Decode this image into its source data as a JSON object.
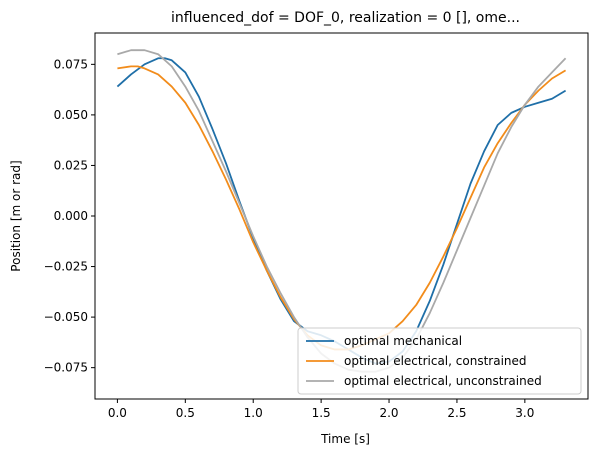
{
  "chart_data": {
    "type": "line",
    "title": "influenced_dof = DOF_0, realization = 0 [], ome...",
    "xlabel": "Time [s]",
    "ylabel": "Position [m or rad]",
    "xlim": [
      -0.165,
      3.465
    ],
    "ylim": [
      -0.0905,
      0.0905
    ],
    "xticks": [
      0.0,
      0.5,
      1.0,
      1.5,
      2.0,
      2.5,
      3.0
    ],
    "xtick_labels": [
      "0.0",
      "0.5",
      "1.0",
      "1.5",
      "2.0",
      "2.5",
      "3.0"
    ],
    "yticks": [
      -0.075,
      -0.05,
      -0.025,
      0.0,
      0.025,
      0.05,
      0.075
    ],
    "ytick_labels": [
      "−0.075",
      "−0.050",
      "−0.025",
      "0.000",
      "0.025",
      "0.050",
      "0.075"
    ],
    "grid": false,
    "legend_position": "lower-right",
    "series": [
      {
        "name": "optimal mechanical",
        "color": "#1f6fa8",
        "x": [
          0.0,
          0.1,
          0.2,
          0.3,
          0.35,
          0.4,
          0.5,
          0.6,
          0.7,
          0.8,
          0.9,
          1.0,
          1.1,
          1.2,
          1.3,
          1.4,
          1.5,
          1.6,
          1.7,
          1.8,
          1.9,
          2.0,
          2.1,
          2.2,
          2.3,
          2.4,
          2.5,
          2.6,
          2.7,
          2.8,
          2.9,
          3.0,
          3.1,
          3.2,
          3.3
        ],
        "y": [
          0.064,
          0.07,
          0.075,
          0.078,
          0.078,
          0.077,
          0.071,
          0.059,
          0.043,
          0.026,
          0.007,
          -0.011,
          -0.027,
          -0.041,
          -0.052,
          -0.057,
          -0.059,
          -0.062,
          -0.066,
          -0.07,
          -0.073,
          -0.072,
          -0.067,
          -0.057,
          -0.042,
          -0.024,
          -0.004,
          0.016,
          0.032,
          0.045,
          0.051,
          0.054,
          0.056,
          0.058,
          0.062
        ]
      },
      {
        "name": "optimal electrical, constrained",
        "color": "#f28c1b",
        "x": [
          0.0,
          0.1,
          0.15,
          0.2,
          0.3,
          0.4,
          0.5,
          0.6,
          0.7,
          0.8,
          0.9,
          1.0,
          1.1,
          1.2,
          1.3,
          1.4,
          1.5,
          1.6,
          1.7,
          1.8,
          1.9,
          2.0,
          2.1,
          2.2,
          2.3,
          2.4,
          2.5,
          2.6,
          2.7,
          2.8,
          2.9,
          3.0,
          3.1,
          3.2,
          3.3
        ],
        "y": [
          0.073,
          0.074,
          0.074,
          0.073,
          0.07,
          0.064,
          0.056,
          0.045,
          0.032,
          0.018,
          0.003,
          -0.013,
          -0.027,
          -0.04,
          -0.051,
          -0.059,
          -0.064,
          -0.066,
          -0.066,
          -0.064,
          -0.061,
          -0.058,
          -0.052,
          -0.044,
          -0.033,
          -0.02,
          -0.006,
          0.009,
          0.024,
          0.036,
          0.046,
          0.055,
          0.062,
          0.068,
          0.072
        ]
      },
      {
        "name": "optimal electrical, unconstrained",
        "color": "#a9a9a9",
        "x": [
          0.0,
          0.1,
          0.2,
          0.3,
          0.4,
          0.5,
          0.6,
          0.7,
          0.8,
          0.9,
          1.0,
          1.1,
          1.2,
          1.3,
          1.4,
          1.5,
          1.6,
          1.7,
          1.8,
          1.9,
          2.0,
          2.1,
          2.2,
          2.3,
          2.4,
          2.5,
          2.6,
          2.7,
          2.8,
          2.9,
          3.0,
          3.1,
          3.2,
          3.3
        ],
        "y": [
          0.08,
          0.082,
          0.082,
          0.08,
          0.074,
          0.064,
          0.052,
          0.037,
          0.022,
          0.006,
          -0.01,
          -0.025,
          -0.038,
          -0.05,
          -0.06,
          -0.068,
          -0.073,
          -0.076,
          -0.077,
          -0.077,
          -0.075,
          -0.07,
          -0.061,
          -0.048,
          -0.033,
          -0.017,
          -0.001,
          0.015,
          0.031,
          0.044,
          0.055,
          0.064,
          0.071,
          0.078
        ]
      }
    ]
  }
}
